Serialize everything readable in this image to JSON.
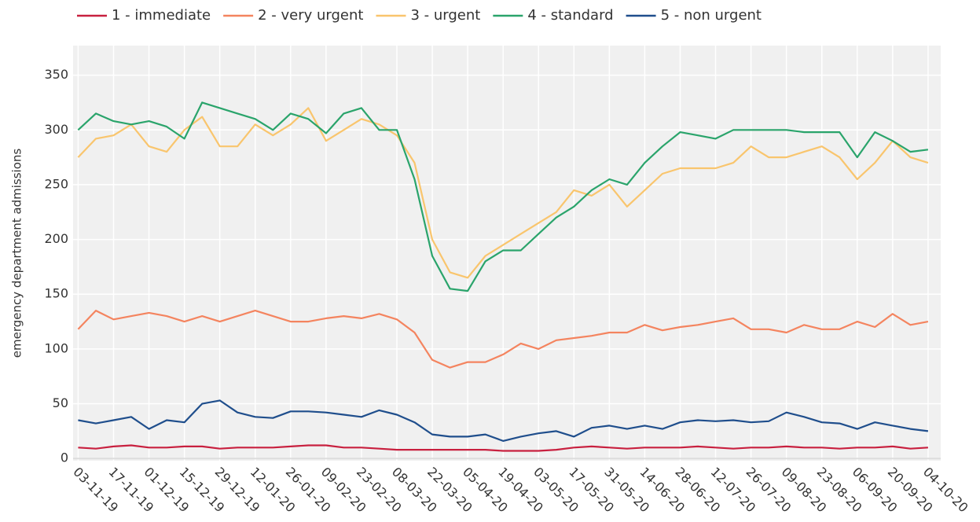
{
  "chart_data": {
    "type": "line",
    "y_label": "emergency department admissions",
    "x": [
      "2019-11-03",
      "2019-11-10",
      "2019-11-17",
      "2019-11-24",
      "2019-12-01",
      "2019-12-08",
      "2019-12-15",
      "2019-12-22",
      "2019-12-29",
      "2020-01-05",
      "2020-01-12",
      "2020-01-19",
      "2020-01-26",
      "2020-02-02",
      "2020-02-09",
      "2020-02-16",
      "2020-02-23",
      "2020-03-01",
      "2020-03-08",
      "2020-03-15",
      "2020-03-22",
      "2020-03-29",
      "2020-04-05",
      "2020-04-12",
      "2020-04-19",
      "2020-04-26",
      "2020-05-03",
      "2020-05-10",
      "2020-05-17",
      "2020-05-24",
      "2020-05-31",
      "2020-06-07",
      "2020-06-14",
      "2020-06-21",
      "2020-06-28",
      "2020-07-05",
      "2020-07-12",
      "2020-07-19",
      "2020-07-26",
      "2020-08-02",
      "2020-08-09",
      "2020-08-16",
      "2020-08-23",
      "2020-08-30",
      "2020-09-06",
      "2020-09-13",
      "2020-09-20",
      "2020-09-27",
      "2020-10-04"
    ],
    "series": [
      {
        "name": "1 - immediate",
        "color": "#c8203f",
        "values": [
          10,
          9,
          11,
          12,
          10,
          10,
          11,
          11,
          9,
          10,
          10,
          10,
          11,
          12,
          12,
          10,
          10,
          9,
          8,
          8,
          8,
          8,
          8,
          8,
          7,
          7,
          7,
          8,
          10,
          11,
          10,
          9,
          10,
          10,
          10,
          11,
          10,
          9,
          10,
          10,
          11,
          10,
          10,
          9,
          10,
          10,
          11,
          9,
          10
        ]
      },
      {
        "name": "2 - very urgent",
        "color": "#f4845f",
        "values": [
          118,
          135,
          127,
          130,
          133,
          130,
          125,
          130,
          125,
          130,
          135,
          130,
          125,
          125,
          128,
          130,
          128,
          132,
          127,
          115,
          90,
          83,
          88,
          88,
          95,
          105,
          100,
          108,
          110,
          112,
          115,
          115,
          122,
          117,
          120,
          122,
          125,
          128,
          118,
          118,
          115,
          122,
          118,
          118,
          125,
          120,
          132,
          122,
          125
        ]
      },
      {
        "name": "3 - urgent",
        "color": "#f9c56d",
        "values": [
          275,
          292,
          295,
          305,
          285,
          280,
          300,
          312,
          285,
          285,
          305,
          295,
          305,
          320,
          290,
          300,
          310,
          305,
          295,
          270,
          200,
          170,
          165,
          185,
          195,
          205,
          215,
          225,
          245,
          240,
          250,
          230,
          245,
          260,
          265,
          265,
          265,
          270,
          285,
          275,
          275,
          280,
          285,
          275,
          255,
          270,
          290,
          275,
          270
        ]
      },
      {
        "name": "4 - standard",
        "color": "#2aa46b",
        "values": [
          300,
          315,
          308,
          305,
          308,
          303,
          292,
          325,
          320,
          315,
          310,
          300,
          315,
          310,
          297,
          315,
          320,
          300,
          300,
          255,
          185,
          155,
          153,
          180,
          190,
          190,
          205,
          220,
          230,
          245,
          255,
          250,
          270,
          285,
          298,
          295,
          292,
          300,
          300,
          300,
          300,
          298,
          298,
          298,
          275,
          298,
          290,
          280,
          282
        ]
      },
      {
        "name": "5 - non urgent",
        "color": "#1f4e8c",
        "values": [
          35,
          32,
          35,
          38,
          27,
          35,
          33,
          50,
          53,
          42,
          38,
          37,
          43,
          43,
          42,
          40,
          38,
          44,
          40,
          33,
          22,
          20,
          20,
          22,
          16,
          20,
          23,
          25,
          20,
          28,
          30,
          27,
          30,
          27,
          33,
          35,
          34,
          35,
          33,
          34,
          42,
          38,
          33,
          32,
          27,
          33,
          30,
          27,
          25
        ]
      }
    ],
    "xlim": [
      "2019-11-01",
      "2020-10-09"
    ],
    "xticks": [
      {
        "value": "2019-11-03",
        "label": "03-11-19"
      },
      {
        "value": "2019-11-17",
        "label": "17-11-19"
      },
      {
        "value": "2019-12-01",
        "label": "01-12-19"
      },
      {
        "value": "2019-12-15",
        "label": "15-12-19"
      },
      {
        "value": "2019-12-29",
        "label": "29-12-19"
      },
      {
        "value": "2020-01-12",
        "label": "12-01-20"
      },
      {
        "value": "2020-01-26",
        "label": "26-01-20"
      },
      {
        "value": "2020-02-09",
        "label": "09-02-20"
      },
      {
        "value": "2020-02-23",
        "label": "23-02-20"
      },
      {
        "value": "2020-03-08",
        "label": "08-03-20"
      },
      {
        "value": "2020-03-22",
        "label": "22-03-20"
      },
      {
        "value": "2020-04-05",
        "label": "05-04-20"
      },
      {
        "value": "2020-04-19",
        "label": "19-04-20"
      },
      {
        "value": "2020-05-03",
        "label": "03-05-20"
      },
      {
        "value": "2020-05-17",
        "label": "17-05-20"
      },
      {
        "value": "2020-05-31",
        "label": "31-05-20"
      },
      {
        "value": "2020-06-14",
        "label": "14-06-20"
      },
      {
        "value": "2020-06-28",
        "label": "28-06-20"
      },
      {
        "value": "2020-07-12",
        "label": "12-07-20"
      },
      {
        "value": "2020-07-26",
        "label": "26-07-20"
      },
      {
        "value": "2020-08-09",
        "label": "09-08-20"
      },
      {
        "value": "2020-08-23",
        "label": "23-08-20"
      },
      {
        "value": "2020-09-06",
        "label": "06-09-20"
      },
      {
        "value": "2020-09-20",
        "label": "20-09-20"
      },
      {
        "value": "2020-10-04",
        "label": "04-10-20"
      }
    ],
    "ylim": [
      -2,
      377
    ],
    "yticks": [
      0,
      50,
      100,
      150,
      200,
      250,
      300,
      350
    ],
    "grid": true,
    "legend": "top"
  }
}
